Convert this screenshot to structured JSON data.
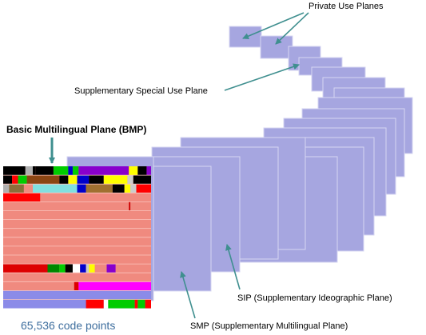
{
  "labels": {
    "private_use": "Private Use Planes",
    "special_use": "Supplementary Special Use Plane",
    "bmp": "Basic Multilingual Plane (BMP)",
    "code_points": "65,536 code points",
    "sip": "SIP (Supplementary Ideographic Plane)",
    "smp": "SMP (Supplementary Multilingual Plane)"
  },
  "colors": {
    "plane_fill": "#a6a6e0",
    "plane_stroke": "#d6d6f2",
    "arrow": "#3f8f8f",
    "bmp_base": "#f08a7f",
    "bmp_top": "#8b8be8",
    "bmp_grid": "#fbc4bd"
  }
}
